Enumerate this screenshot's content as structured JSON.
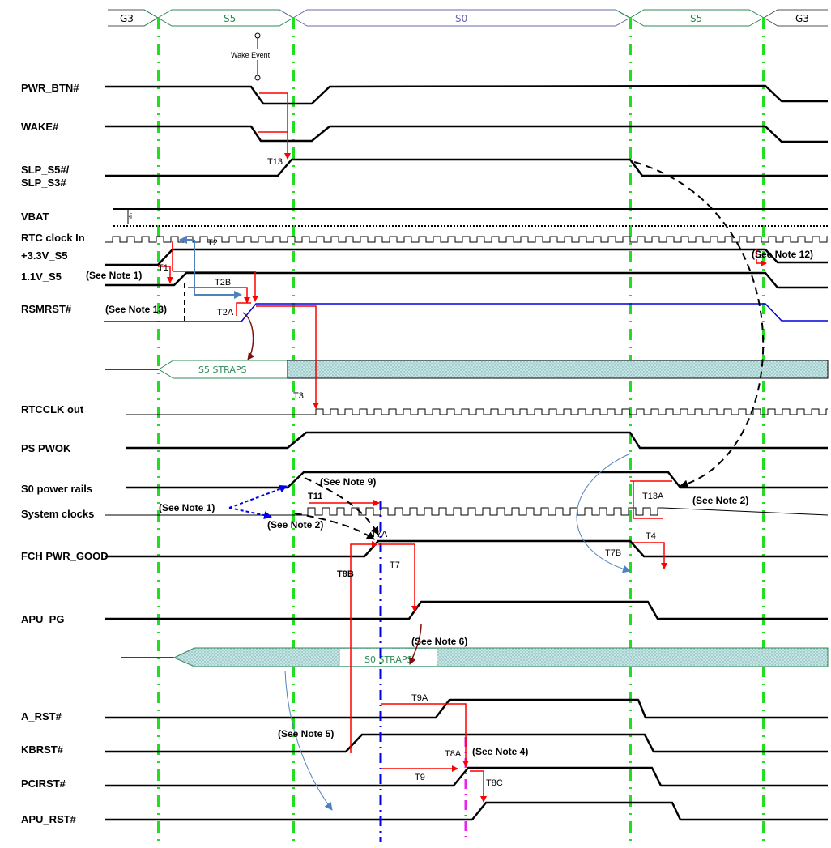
{
  "states": [
    {
      "label": "G3",
      "color": "#000000"
    },
    {
      "label": "S5",
      "color": "#2e8b57"
    },
    {
      "label": "S0",
      "color": "#6a6aa8"
    },
    {
      "label": "S5",
      "color": "#2e8b57"
    },
    {
      "label": "G3",
      "color": "#000000"
    }
  ],
  "signals": {
    "pwr_btn": "PWR_BTN#",
    "wake": "WAKE#",
    "slp_s5_line1": "SLP_S5#/",
    "slp_s5_line2": "SLP_S3#",
    "vbat": "VBAT",
    "rtc_in": "RTC clock In",
    "v33_s5": "+3.3V_S5",
    "v11_s5": "1.1V_S5",
    "rsmrst": "RSMRST#",
    "rtcclk_out": "RTCCLK out",
    "ps_pwok": "PS PWOK",
    "s0_rails": "S0 power rails",
    "sys_clocks": "System clocks",
    "fch_pwr_good": "FCH PWR_GOOD",
    "apu_pg": "APU_PG",
    "a_rst": "A_RST#",
    "kbrst": "KBRST#",
    "pcirst": "PCIRST#",
    "apu_rst": "APU_RST#"
  },
  "wake_event": "Wake Event",
  "s5_straps": "S5 STRAPS",
  "s0_straps": "S0 STRAPS",
  "vbat_tick": "Min",
  "timings": {
    "t1": "T1",
    "t2": "T2",
    "t2b": "T2B",
    "t2a": "T2A",
    "t3": "T3",
    "t4": "T4",
    "t7": "T7",
    "t7a": "T7A",
    "t7b": "T7B",
    "t8a": "T8A",
    "t8b": "T8B",
    "t8c": "T8C",
    "t9": "T9",
    "t9a": "T9A",
    "t11": "T11",
    "t13": "T13",
    "t13a": "T13A"
  },
  "notes": {
    "n1a": "(See Note 1)",
    "n1b": "(See Note 1)",
    "n2a": "(See Note 2)",
    "n2b": "(See Note 2)",
    "n4": "(See Note 4)",
    "n5": "(See Note 5)",
    "n6": "(See Note 6)",
    "n9": "(See Note 9)",
    "n12": "(See Note 12)",
    "n13": "(See Note 13)"
  },
  "colors": {
    "state_border": "#555555",
    "guide_green": "#22dd22",
    "signal_black": "#000000",
    "timing_red": "#ff0000",
    "rsmrst_blue": "#0000dd",
    "note_blue": "#4f81bd",
    "marker_blue": "#0000ee",
    "marker_magenta": "#ee22ee",
    "dark_red": "#7f1010",
    "straps_fill": "#bfe0e0"
  }
}
